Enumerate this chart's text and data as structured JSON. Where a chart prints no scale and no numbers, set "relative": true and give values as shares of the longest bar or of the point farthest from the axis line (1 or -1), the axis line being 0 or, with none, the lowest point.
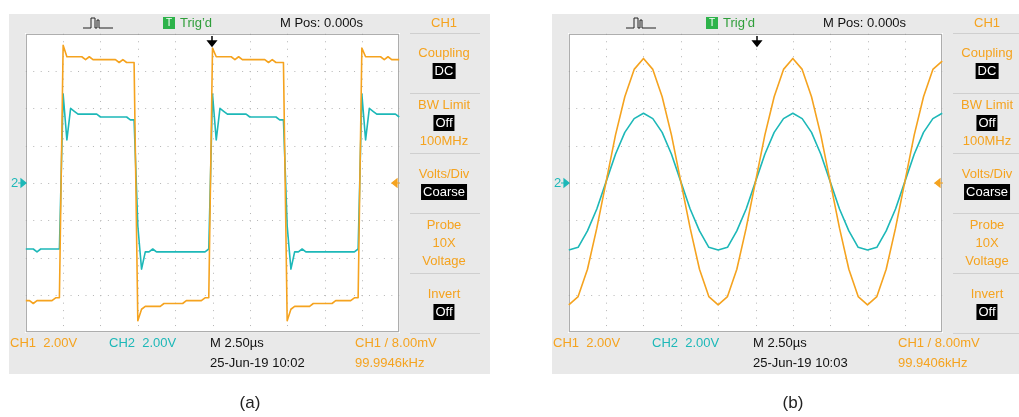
{
  "chart_data": [
    {
      "type": "line",
      "relative": true,
      "grid": true,
      "categories": [
        null,
        null,
        null,
        null,
        null,
        null,
        null,
        null,
        null,
        null,
        null,
        null,
        null,
        null,
        null,
        null,
        null,
        null,
        null,
        null,
        null,
        null,
        null,
        null,
        null,
        null,
        null,
        null,
        null,
        null,
        null,
        null,
        null,
        null,
        null,
        null,
        null,
        null,
        null,
        null,
        null,
        null,
        null,
        null,
        null,
        null,
        null,
        null,
        null,
        null,
        null,
        null,
        null,
        null,
        null,
        null,
        null,
        null,
        null,
        null,
        null,
        null,
        null,
        null,
        null,
        null,
        null,
        null,
        null,
        null,
        null,
        null,
        null,
        null,
        null,
        null,
        null,
        null,
        null,
        null,
        null,
        null,
        null,
        null,
        null,
        null,
        null,
        null,
        null,
        null,
        null,
        null,
        null,
        null,
        null,
        null,
        null,
        null,
        null,
        null,
        null
      ],
      "series": [
        {
          "color": "#f5a31f",
          "values": [
            0.11,
            0.11,
            0.1,
            0.11,
            0.11,
            0.11,
            0.11,
            0.11,
            0.12,
            0.12,
            1,
            0.96,
            0.96,
            0.96,
            0.96,
            0.96,
            0.95,
            0.96,
            0.95,
            0.95,
            0.95,
            0.95,
            0.95,
            0.95,
            0.95,
            0.94,
            0.95,
            0.94,
            0.94,
            0.94,
            0.04,
            0.08,
            0.09,
            0.09,
            0.09,
            0.09,
            0.09,
            0.1,
            0.1,
            0.1,
            0.1,
            0.1,
            0.1,
            0.11,
            0.11,
            0.11,
            0.11,
            0.11,
            0.12,
            0.12,
            0.99,
            0.96,
            0.96,
            0.96,
            0.96,
            0.96,
            0.95,
            0.96,
            0.95,
            0.95,
            0.95,
            0.95,
            0.95,
            0.95,
            0.95,
            0.94,
            0.95,
            0.94,
            0.94,
            0.94,
            0.04,
            0.08,
            0.09,
            0.09,
            0.09,
            0.09,
            0.09,
            0.1,
            0.1,
            0.1,
            0.1,
            0.1,
            0.1,
            0.11,
            0.11,
            0.11,
            0.11,
            0.11,
            0.12,
            0.12,
            0.99,
            0.96,
            0.96,
            0.96,
            0.96,
            0.96,
            0.95,
            0.96,
            0.95,
            0.95,
            0.95
          ]
        },
        {
          "color": "#1db8b8",
          "values": [
            0.29,
            0.29,
            0.29,
            0.28,
            0.29,
            0.29,
            0.29,
            0.29,
            0.29,
            0.29,
            0.83,
            0.67,
            0.78,
            0.77,
            0.76,
            0.76,
            0.76,
            0.76,
            0.76,
            0.76,
            0.75,
            0.75,
            0.75,
            0.75,
            0.75,
            0.75,
            0.75,
            0.75,
            0.74,
            0.74,
            0.37,
            0.22,
            0.28,
            0.28,
            0.29,
            0.28,
            0.28,
            0.28,
            0.28,
            0.28,
            0.28,
            0.28,
            0.28,
            0.28,
            0.28,
            0.28,
            0.28,
            0.28,
            0.28,
            0.29,
            0.83,
            0.67,
            0.78,
            0.77,
            0.76,
            0.76,
            0.76,
            0.76,
            0.76,
            0.76,
            0.75,
            0.75,
            0.75,
            0.75,
            0.75,
            0.75,
            0.75,
            0.75,
            0.74,
            0.74,
            0.37,
            0.22,
            0.28,
            0.28,
            0.29,
            0.28,
            0.28,
            0.28,
            0.28,
            0.28,
            0.28,
            0.28,
            0.28,
            0.28,
            0.28,
            0.28,
            0.28,
            0.28,
            0.28,
            0.29,
            0.83,
            0.67,
            0.78,
            0.77,
            0.76,
            0.76,
            0.76,
            0.76,
            0.76,
            0.76,
            0.75
          ]
        }
      ],
      "annotations": [
        "T",
        "Trig’d",
        "M Pos: 0.000s",
        "CH1",
        "Coupling",
        "DC",
        "BW Limit",
        "Off",
        "100MHz",
        "Volts/Div",
        "Coarse",
        "Probe",
        "10X",
        "Voltage",
        "Invert",
        "Off",
        "CH1  2.00V",
        "CH2  2.00V",
        "M 2.50µs",
        "25-Jun-19 10:02",
        "CH1 / 8.00mV",
        "99.9946kHz",
        "2",
        "(a)"
      ]
    },
    {
      "type": "line",
      "relative": true,
      "grid": true,
      "categories": [
        null,
        null,
        null,
        null,
        null,
        null,
        null,
        null,
        null,
        null,
        null,
        null,
        null,
        null,
        null,
        null,
        null,
        null,
        null,
        null,
        null,
        null,
        null,
        null,
        null,
        null,
        null,
        null,
        null,
        null,
        null,
        null,
        null,
        null,
        null,
        null,
        null,
        null,
        null,
        null,
        null
      ],
      "series": [
        {
          "color": "#f5a31f",
          "values": [
            0.1,
            0.13,
            0.23,
            0.38,
            0.55,
            0.72,
            0.86,
            0.96,
            1,
            0.96,
            0.86,
            0.72,
            0.55,
            0.38,
            0.23,
            0.13,
            0.1,
            0.13,
            0.23,
            0.38,
            0.55,
            0.72,
            0.86,
            0.96,
            1,
            0.96,
            0.86,
            0.72,
            0.55,
            0.38,
            0.23,
            0.13,
            0.1,
            0.13,
            0.23,
            0.38,
            0.55,
            0.72,
            0.86,
            0.96,
            0.99
          ]
        },
        {
          "color": "#1db8b8",
          "values": [
            0.3,
            0.31,
            0.37,
            0.45,
            0.55,
            0.65,
            0.73,
            0.78,
            0.8,
            0.78,
            0.73,
            0.65,
            0.55,
            0.45,
            0.37,
            0.31,
            0.3,
            0.31,
            0.37,
            0.45,
            0.55,
            0.65,
            0.73,
            0.78,
            0.8,
            0.78,
            0.73,
            0.65,
            0.55,
            0.45,
            0.37,
            0.31,
            0.3,
            0.31,
            0.37,
            0.45,
            0.55,
            0.65,
            0.73,
            0.78,
            0.8
          ]
        }
      ],
      "annotations": [
        "T",
        "Trig’d",
        "M Pos: 0.000s",
        "CH1",
        "Coupling",
        "DC",
        "BW Limit",
        "Off",
        "100MHz",
        "Volts/Div",
        "Coarse",
        "Probe",
        "10X",
        "Voltage",
        "Invert",
        "Off",
        "CH1  2.00V",
        "CH2  2.00V",
        "M 2.50µs",
        "25-Jun-19 10:03",
        "CH1 / 8.00mV",
        "99.9406kHz",
        "2",
        "(b)"
      ]
    }
  ]
}
